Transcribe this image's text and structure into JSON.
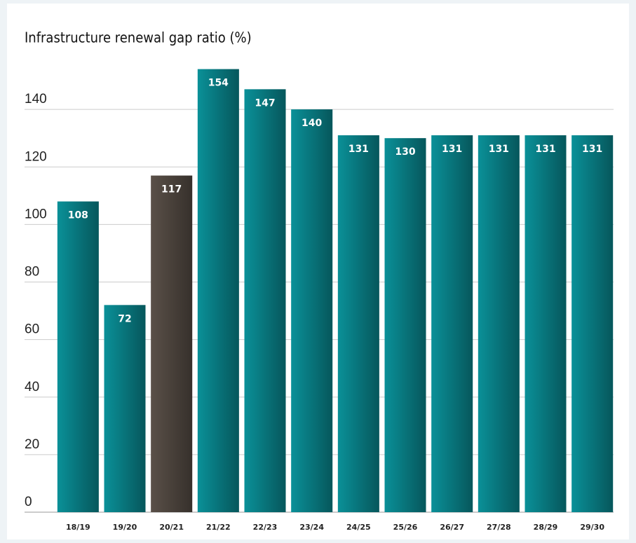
{
  "chart_data": {
    "type": "bar",
    "title": "Infrastructure renewal gap ratio (%)",
    "categories": [
      "18/19",
      "19/20",
      "20/21",
      "21/22",
      "22/23",
      "23/24",
      "24/25",
      "25/26",
      "26/27",
      "27/28",
      "28/29",
      "29/30"
    ],
    "values": [
      108,
      72,
      117,
      154,
      147,
      140,
      131,
      130,
      131,
      131,
      131,
      131
    ],
    "colors": [
      "#0a9098",
      "#0a9098",
      "#5a5048",
      "#0a9098",
      "#0a9098",
      "#0a9098",
      "#0a9098",
      "#0a9098",
      "#0a9098",
      "#0a9098",
      "#0a9098",
      "#0a9098"
    ],
    "ylim": [
      0,
      160
    ],
    "yticks": [
      0,
      20,
      40,
      60,
      80,
      100,
      120,
      140
    ],
    "grid": true
  }
}
